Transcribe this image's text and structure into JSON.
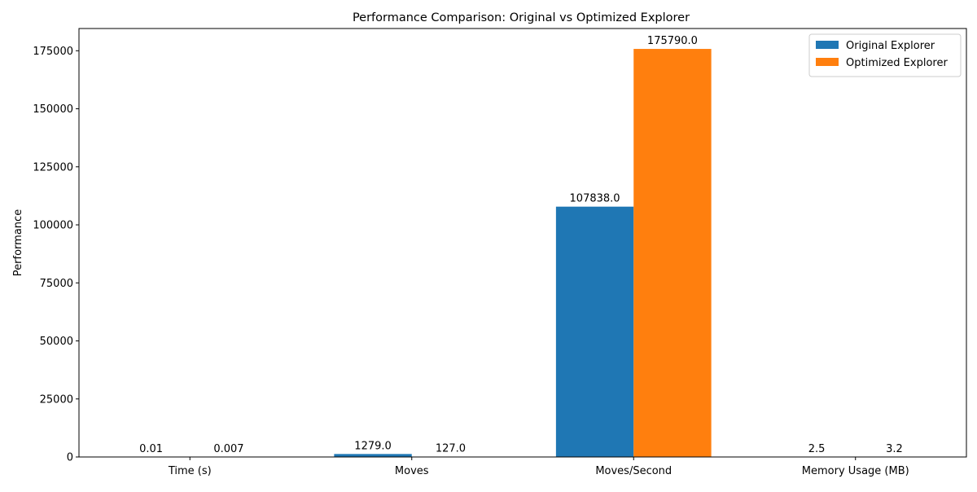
{
  "chart_data": {
    "type": "bar",
    "title": "Performance Comparison: Original vs Optimized Explorer",
    "xlabel": "",
    "ylabel": "Performance",
    "categories": [
      "Time (s)",
      "Moves",
      "Moves/Second",
      "Memory Usage (MB)"
    ],
    "series": [
      {
        "name": "Original Explorer",
        "color": "#1f77b4",
        "values": [
          0.01,
          1279.0,
          107838.0,
          2.5
        ],
        "labels": [
          "0.01",
          "1279.0",
          "107838.0",
          "2.5"
        ]
      },
      {
        "name": "Optimized Explorer",
        "color": "#ff7f0e",
        "values": [
          0.007,
          127.0,
          175790.0,
          3.2
        ],
        "labels": [
          "0.007",
          "127.0",
          "175790.0",
          "3.2"
        ]
      }
    ],
    "ylim": [
      0,
      184579.5
    ],
    "yticks": [
      0,
      25000,
      50000,
      75000,
      100000,
      125000,
      150000,
      175000
    ],
    "ytick_labels": [
      "0",
      "25000",
      "50000",
      "75000",
      "100000",
      "125000",
      "150000",
      "175000"
    ],
    "legend": "top-right",
    "grid": false
  }
}
